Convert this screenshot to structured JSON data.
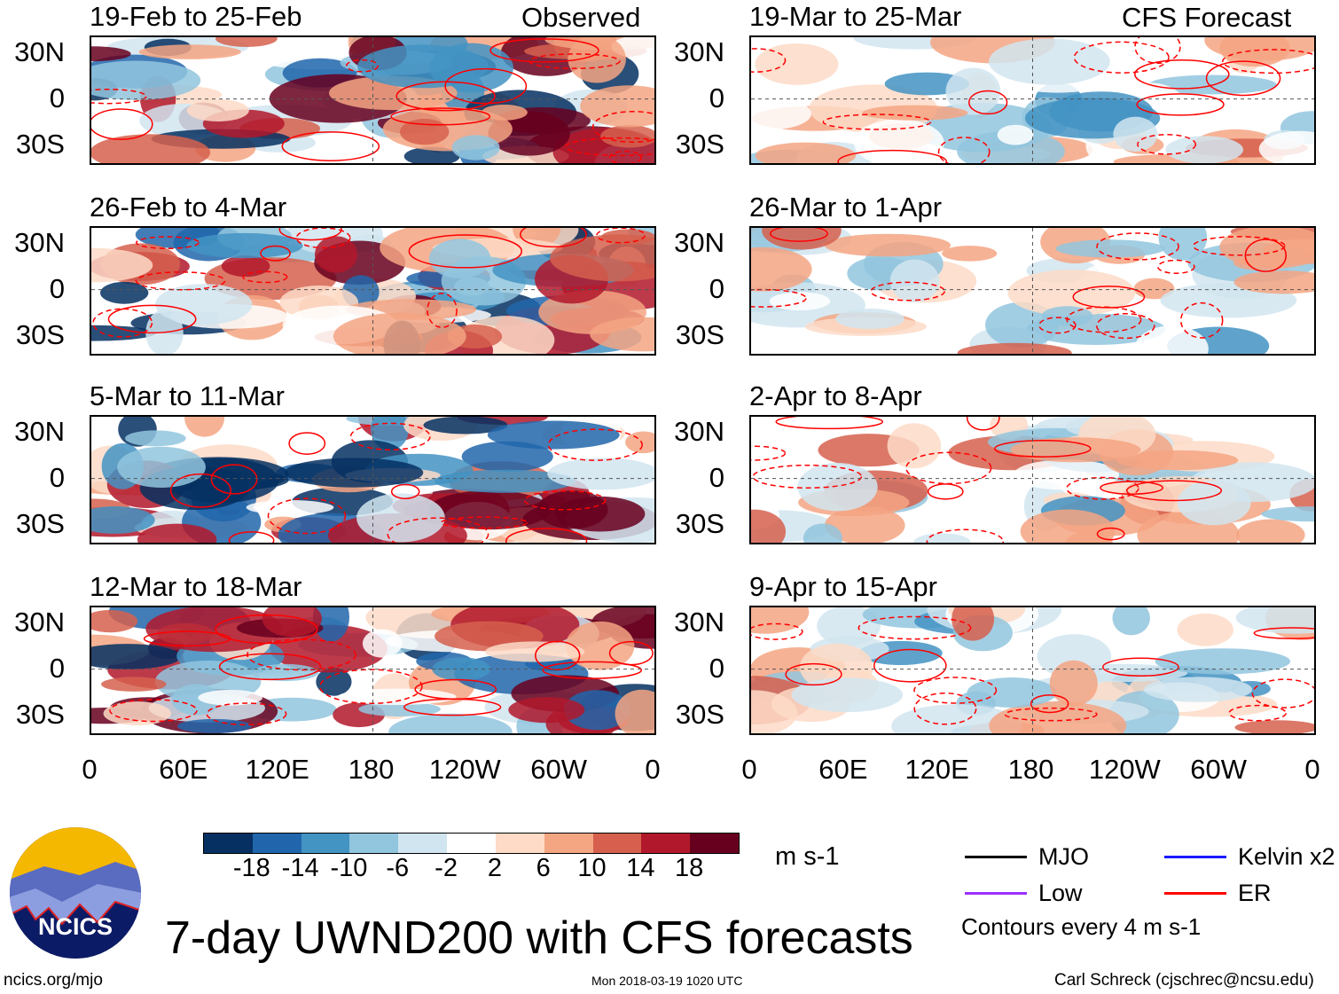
{
  "title": "7-day UWND200 with CFS forecasts",
  "left_header": "Observed",
  "right_header": "CFS Forecast",
  "units": "m s-1",
  "footer": {
    "url": "ncics.org/mjo",
    "timestamp": "Mon 2018-03-19 1020 UTC",
    "author": "Carl Schreck (cjschrec@ncsu.edu)"
  },
  "logo_text": "NCICS",
  "contour_note": "Contours every 4 m s-1",
  "legend": [
    {
      "label": "MJO",
      "color": "#000000"
    },
    {
      "label": "Kelvin x2",
      "color": "#1a1aff"
    },
    {
      "label": "Low",
      "color": "#9b30ff"
    },
    {
      "label": "ER",
      "color": "#ff0000"
    }
  ],
  "chart_data": {
    "type": "heatmap",
    "variable": "200-hPa zonal wind anomaly",
    "lat_ticks": [
      "30N",
      "0",
      "30S"
    ],
    "lon_ticks": [
      "0",
      "60E",
      "120E",
      "180",
      "120W",
      "60W",
      "0"
    ],
    "colorbar": {
      "ticks": [
        "-18",
        "-14",
        "-10",
        "-6",
        "-2",
        "2",
        "6",
        "10",
        "14",
        "18"
      ],
      "colors": [
        "#053061",
        "#2166ac",
        "#4393c3",
        "#92c5de",
        "#d1e5f0",
        "#ffffff",
        "#fddbc7",
        "#f4a582",
        "#d6604d",
        "#b2182b",
        "#67001f"
      ]
    },
    "panels": [
      {
        "title": "19-Feb to 25-Feb",
        "kind": "observed"
      },
      {
        "title": "26-Feb to 4-Mar",
        "kind": "observed"
      },
      {
        "title": "5-Mar to 11-Mar",
        "kind": "observed"
      },
      {
        "title": "12-Mar to 18-Mar",
        "kind": "observed"
      },
      {
        "title": "19-Mar to 25-Mar",
        "kind": "forecast"
      },
      {
        "title": "26-Mar to 1-Apr",
        "kind": "forecast"
      },
      {
        "title": "2-Apr to 8-Apr",
        "kind": "forecast"
      },
      {
        "title": "9-Apr to 15-Apr",
        "kind": "forecast"
      }
    ]
  }
}
